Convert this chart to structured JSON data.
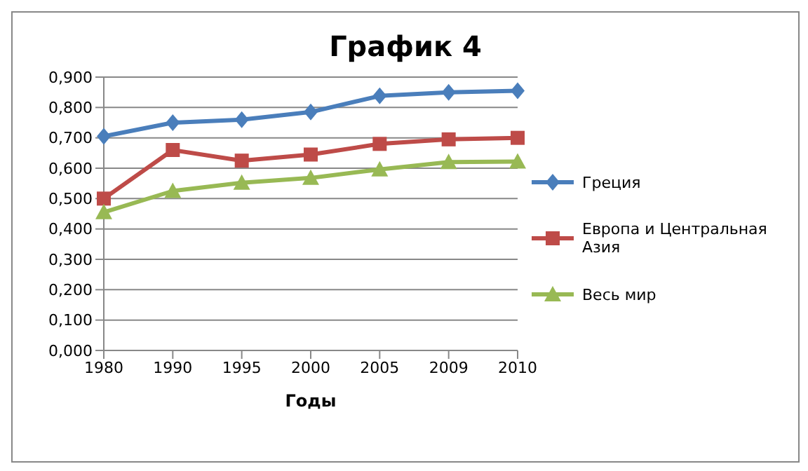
{
  "chart_data": {
    "type": "line",
    "title": "График 4",
    "xlabel": "Годы",
    "categories": [
      "1980",
      "1990",
      "1995",
      "2000",
      "2005",
      "2009",
      "2010"
    ],
    "series": [
      {
        "name": "Греция",
        "color": "#4a7ebb",
        "marker": "diamond",
        "values": [
          0.705,
          0.75,
          0.76,
          0.785,
          0.838,
          0.85,
          0.855
        ]
      },
      {
        "name": "Европа и Центральная Азия",
        "color": "#be4b48",
        "marker": "square",
        "values": [
          0.5,
          0.66,
          0.625,
          0.645,
          0.68,
          0.695,
          0.7
        ]
      },
      {
        "name": "Весь мир",
        "color": "#98b954",
        "marker": "triangle",
        "values": [
          0.455,
          0.525,
          0.552,
          0.568,
          0.596,
          0.62,
          0.622
        ]
      }
    ],
    "ylim": [
      0,
      0.9
    ],
    "yticks": [
      {
        "value": 0,
        "label": "0,000"
      },
      {
        "value": 0.1,
        "label": "0,100"
      },
      {
        "value": 0.2,
        "label": "0,200"
      },
      {
        "value": 0.3,
        "label": "0,300"
      },
      {
        "value": 0.4,
        "label": "0,400"
      },
      {
        "value": 0.5,
        "label": "0,500"
      },
      {
        "value": 0.6,
        "label": "0,600"
      },
      {
        "value": 0.7,
        "label": "0,700"
      },
      {
        "value": 0.8,
        "label": "0,800"
      },
      {
        "value": 0.9,
        "label": "0,900"
      }
    ],
    "grid": "y",
    "legend": "right",
    "line_style": "solid"
  }
}
